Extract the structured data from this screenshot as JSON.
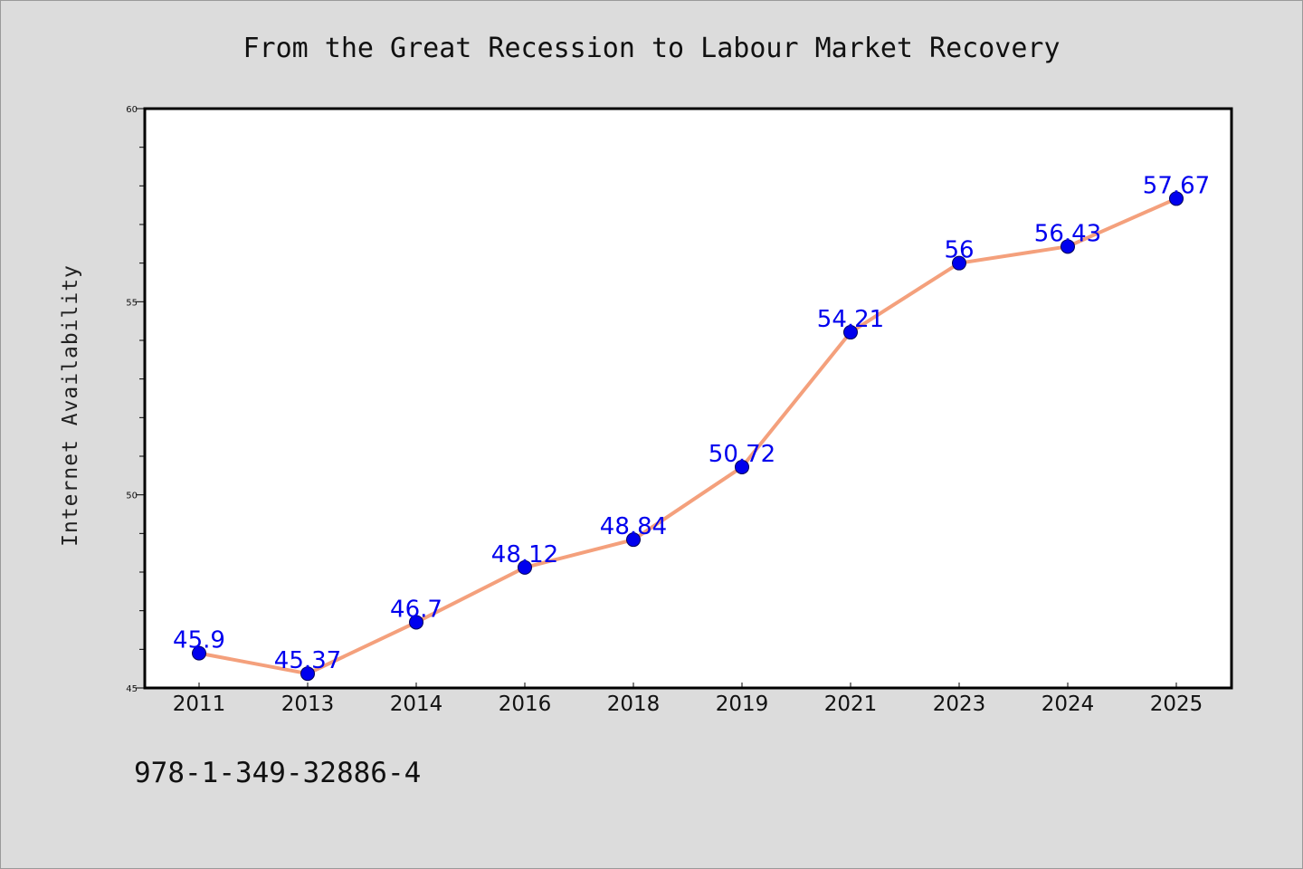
{
  "chart_data": {
    "type": "line",
    "title": "From the Great Recession to Labour Market Recovery",
    "xlabel": "",
    "ylabel": "Internet Availability",
    "categories": [
      "2011",
      "2013",
      "2014",
      "2016",
      "2018",
      "2019",
      "2021",
      "2023",
      "2024",
      "2025"
    ],
    "series": [
      {
        "values": [
          45.9,
          45.37,
          46.7,
          48.12,
          48.84,
          50.72,
          54.21,
          56,
          56.43,
          57.67
        ],
        "labels": [
          "45.9",
          "45.37",
          "46.7",
          "48.12",
          "48.84",
          "50.72",
          "54.21",
          "56",
          "56.43",
          "57.67"
        ],
        "line_color": "#f4a07c",
        "marker_color": "#0000ee"
      }
    ],
    "ylim": [
      45,
      60
    ],
    "yticks": [
      "45",
      "50",
      "55",
      "60"
    ],
    "grid": false,
    "legend": "none"
  },
  "footer": {
    "isbn": "978-1-349-32886-4"
  },
  "colors": {
    "background": "#dcdcdc",
    "plot_background": "#ffffff",
    "line": "#f4a07c",
    "marker": "#0000ee",
    "data_label": "#0000ee"
  }
}
